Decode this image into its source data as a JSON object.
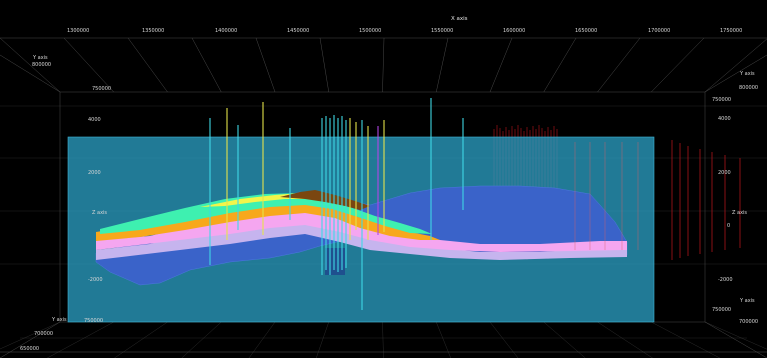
{
  "axes": {
    "x": {
      "title": "X axis",
      "ticks": [
        "1300000",
        "1350000",
        "1400000",
        "1450000",
        "1500000",
        "1550000",
        "1600000",
        "1650000",
        "1700000",
        "1750000"
      ]
    },
    "y": {
      "title_left_top": "Y axis",
      "title_right_top": "Y axis",
      "title_right_bottom": "Y axis",
      "title_left_bottom": "Y axis",
      "ticks_left_top": [
        "800000",
        "750000"
      ],
      "ticks_right_top": [
        "800000",
        "750000"
      ],
      "ticks_right_bottom": [
        "750000",
        "700000"
      ],
      "ticks_left_bottom": [
        "750000",
        "700000",
        "650000"
      ]
    },
    "z": {
      "title_left": "Z axis",
      "title_right": "Z axis",
      "ticks_left": [
        "4000",
        "2000",
        "0",
        "-2000"
      ],
      "ticks_right": [
        "4000",
        "2000",
        "0",
        "-2000"
      ]
    }
  },
  "colors": {
    "background": "#000000",
    "grid": "#5a5a5a",
    "plane": "#2a9cc0",
    "basement": "#3a63c9",
    "layer_pink": "#f5a6f0",
    "layer_lavender": "#c6b4ee",
    "layer_orange": "#f7a81c",
    "layer_green": "#3ef0b0",
    "layer_yellow": "#f2f54a",
    "layer_brown": "#7a4610",
    "well_red": "#b2141b",
    "well_cyan": "#3fd8e6",
    "well_yellow": "#e6e34a"
  }
}
